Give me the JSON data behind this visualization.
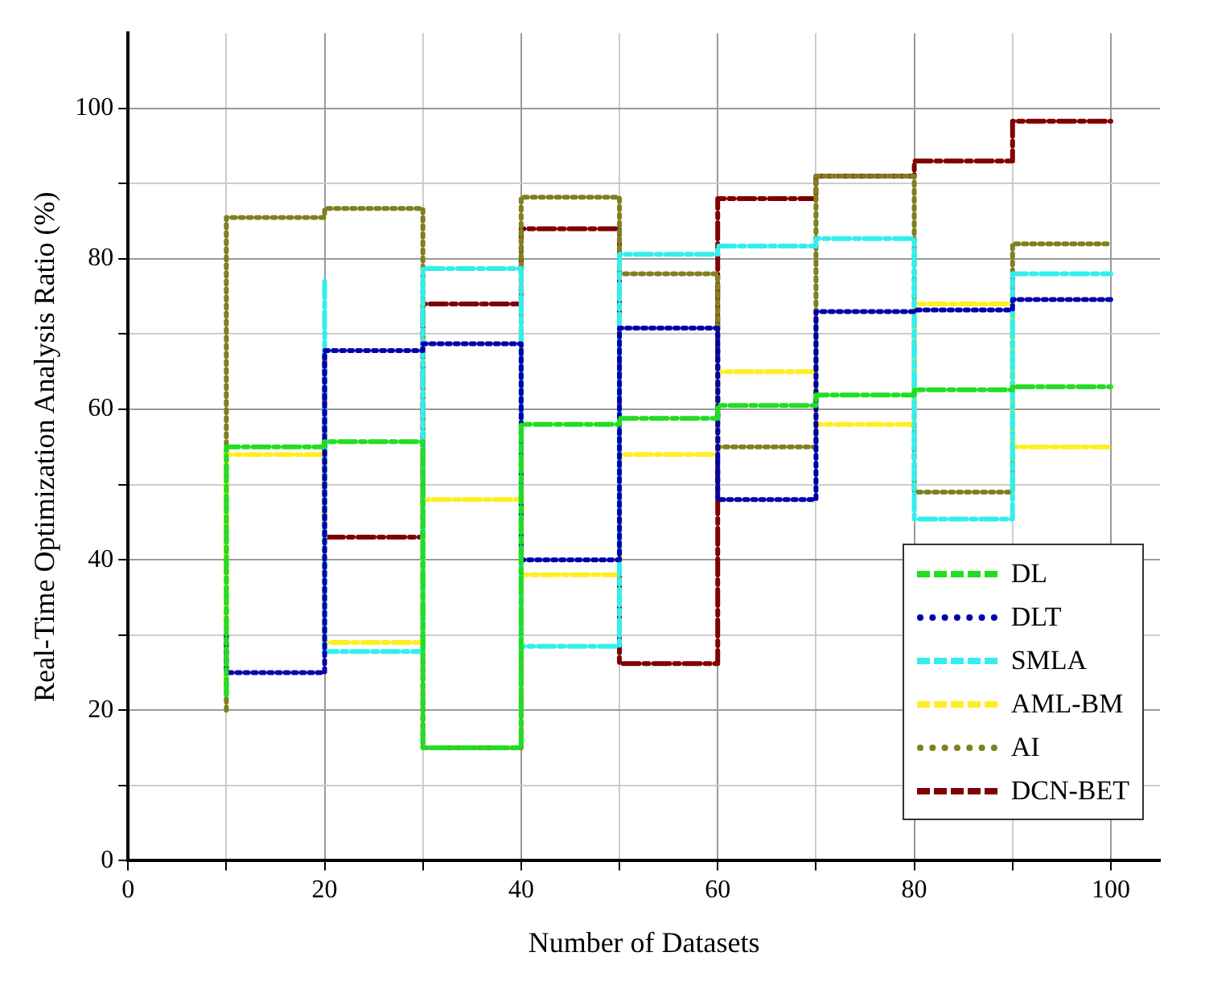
{
  "chart_data": {
    "type": "step",
    "xlabel": "Number of Datasets",
    "ylabel": "Real-Time Optimization Analysis Ratio (%)",
    "x": [
      10,
      20,
      30,
      40,
      50,
      60,
      70,
      80,
      90,
      100
    ],
    "series": [
      {
        "name": "DL",
        "color": "#22dd22",
        "line_style": "dashed",
        "values": [
          22,
          55,
          55.7,
          15,
          58,
          58.8,
          60.5,
          61.9,
          62.6,
          63
        ]
      },
      {
        "name": "DLT",
        "color": "#0000aa",
        "line_style": "dotted",
        "values": [
          30,
          25,
          67.8,
          68.7,
          40,
          70.8,
          48,
          73,
          73.2,
          74.6
        ]
      },
      {
        "name": "SMLA",
        "color": "#33eeee",
        "line_style": "dashed",
        "values": [
          null,
          77,
          27.8,
          78.7,
          28.5,
          80.6,
          81.7,
          82.7,
          45.4,
          78
        ]
      },
      {
        "name": "AML-BM",
        "color": "#ffee22",
        "line_style": "dashed",
        "values": [
          24,
          54,
          29,
          48,
          38,
          54,
          65,
          58,
          74,
          55
        ]
      },
      {
        "name": "AI",
        "color": "#808020",
        "line_style": "dotted",
        "values": [
          20,
          85.5,
          86.7,
          15,
          88.2,
          78,
          55,
          91,
          49,
          82
        ]
      },
      {
        "name": "DCN-BET",
        "color": "#800000",
        "line_style": "dashed",
        "values": [
          null,
          67,
          43,
          74,
          84,
          26.2,
          88,
          91,
          93,
          98.3
        ]
      }
    ],
    "xlim": [
      0,
      105
    ],
    "ylim": [
      0,
      110
    ],
    "xticks": [
      0,
      {
        "value": 10,
        "label": null
      },
      20,
      {
        "value": 30,
        "label": null
      },
      40,
      {
        "value": 50,
        "label": null
      },
      60,
      {
        "value": 70,
        "label": null
      },
      80,
      {
        "value": 90,
        "label": null
      },
      100
    ],
    "yticks": [
      0,
      {
        "value": 10,
        "label": null
      },
      20,
      {
        "value": 30,
        "label": null
      },
      40,
      {
        "value": 50,
        "label": null
      },
      60,
      {
        "value": 70,
        "label": null
      },
      80,
      {
        "value": 90,
        "label": null
      },
      100
    ],
    "grid": true,
    "legend": "bottom right",
    "marker": "none"
  }
}
